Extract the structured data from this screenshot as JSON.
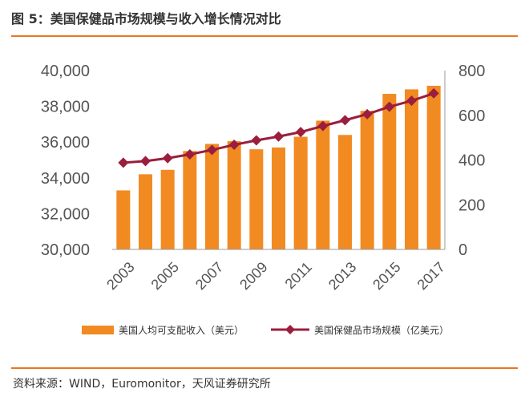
{
  "figure_title": "图 5：美国保健品市场规模与收入增长情况对比",
  "source_text": "资料来源：WIND，Euromonitor，天风证券研究所",
  "colors": {
    "accent": "#e87722",
    "bar": "#f28a22",
    "line": "#9b1e3c"
  },
  "chart_data": {
    "type": "bar",
    "title": "",
    "categories": [
      "2003",
      "2004",
      "2005",
      "2006",
      "2007",
      "2008",
      "2009",
      "2010",
      "2011",
      "2012",
      "2013",
      "2014",
      "2015",
      "2016",
      "2017"
    ],
    "x_tick_labels": [
      "2003",
      "2005",
      "2007",
      "2009",
      "2011",
      "2013",
      "2015",
      "2017"
    ],
    "series": [
      {
        "name": "美国人均可支配收入（美元）",
        "type": "bar",
        "axis": "left",
        "values": [
          33300,
          34200,
          34450,
          35500,
          35900,
          36050,
          35600,
          35700,
          36300,
          37200,
          36400,
          37750,
          38700,
          38950,
          39150
        ]
      },
      {
        "name": "美国保健品市场规模（亿美元）",
        "type": "line",
        "axis": "right",
        "values": [
          388,
          395,
          408,
          425,
          445,
          468,
          488,
          505,
          525,
          552,
          578,
          605,
          638,
          665,
          698
        ]
      }
    ],
    "y_left": {
      "lim": [
        30000,
        40000
      ],
      "ticks": [
        "30,000",
        "32,000",
        "34,000",
        "36,000",
        "38,000",
        "40,000"
      ]
    },
    "y_right": {
      "lim": [
        0,
        800
      ],
      "ticks": [
        "0",
        "200",
        "400",
        "600",
        "800"
      ]
    },
    "grid": false,
    "legend_position": "bottom"
  }
}
